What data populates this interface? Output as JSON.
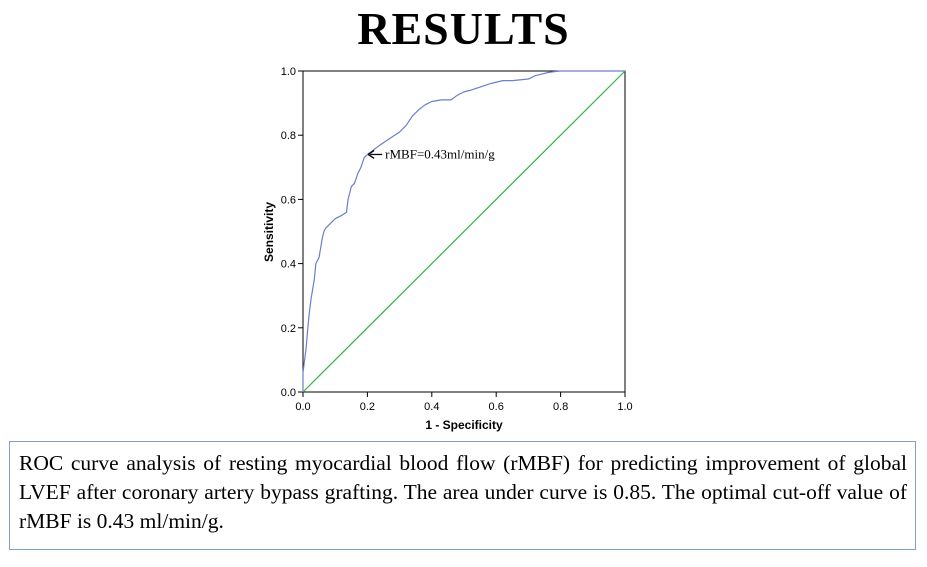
{
  "slide": {
    "title": "RESULTS",
    "caption": "ROC curve analysis of resting myocardial blood flow (rMBF) for predicting improvement of global LVEF after coronary artery bypass grafting. The area under curve is 0.85. The optimal cut-off value of rMBF is 0.43 ml/min/g."
  },
  "chart_data": {
    "type": "line",
    "title": "",
    "xlabel": "1 - Specificity",
    "ylabel": "Sensitivity",
    "xlim": [
      0,
      1
    ],
    "ylim": [
      0,
      1
    ],
    "x_ticks": [
      "0.0",
      "0.2",
      "0.4",
      "0.6",
      "0.8",
      "1.0"
    ],
    "y_ticks": [
      "0.0",
      "0.2",
      "0.4",
      "0.6",
      "0.8",
      "1.0"
    ],
    "grid": false,
    "legend": "none",
    "series": [
      {
        "color": "#6a7fc9",
        "x": [
          0,
          0,
          0.005,
          0.01,
          0.015,
          0.02,
          0.025,
          0.03,
          0.035,
          0.04,
          0.05,
          0.06,
          0.065,
          0.07,
          0.08,
          0.1,
          0.12,
          0.135,
          0.14,
          0.15,
          0.16,
          0.17,
          0.18,
          0.19,
          0.2,
          0.24,
          0.27,
          0.3,
          0.32,
          0.34,
          0.36,
          0.38,
          0.4,
          0.43,
          0.46,
          0.48,
          0.5,
          0.52,
          0.55,
          0.58,
          0.6,
          0.62,
          0.65,
          0.7,
          0.72,
          0.74,
          0.76,
          0.78,
          0.8,
          0.82,
          0.85,
          0.9,
          0.95,
          1.0
        ],
        "y": [
          0,
          0.06,
          0.1,
          0.14,
          0.2,
          0.25,
          0.29,
          0.32,
          0.35,
          0.4,
          0.42,
          0.48,
          0.5,
          0.51,
          0.52,
          0.54,
          0.55,
          0.56,
          0.6,
          0.64,
          0.65,
          0.68,
          0.7,
          0.73,
          0.74,
          0.77,
          0.79,
          0.81,
          0.83,
          0.86,
          0.88,
          0.895,
          0.905,
          0.91,
          0.91,
          0.925,
          0.935,
          0.94,
          0.95,
          0.96,
          0.965,
          0.97,
          0.97,
          0.975,
          0.985,
          0.99,
          0.995,
          0.998,
          1.0,
          1.0,
          1.0,
          1.0,
          1.0,
          1.0
        ]
      },
      {
        "color": "#2db34a",
        "x": [
          0,
          1
        ],
        "y": [
          0,
          1
        ]
      }
    ],
    "annotations": [
      {
        "text": "rMBF=0.43ml/min/g",
        "x": 0.19,
        "y": 0.74
      }
    ]
  }
}
